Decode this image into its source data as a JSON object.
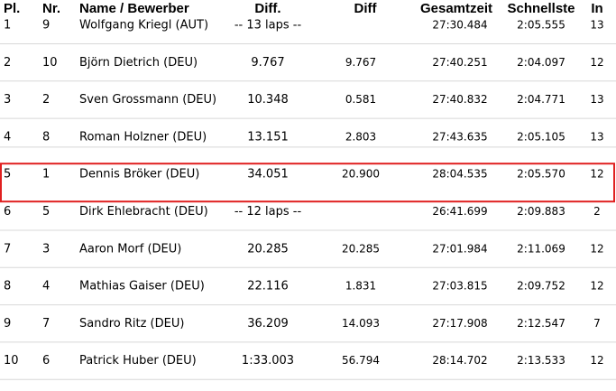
{
  "table": {
    "headers": [
      "Pl.",
      "Nr.",
      "Name / Bewerber",
      "Diff.",
      "Diff",
      "Gesamtzeit",
      "Schnellste",
      "In"
    ],
    "rows": [
      [
        "1",
        "9",
        "Wolfgang Kriegl (AUT)",
        "-- 13 laps --",
        null,
        "27:30.484",
        "2:05.555",
        "13"
      ],
      [
        "2",
        "10",
        "Björn Dietrich (DEU)",
        "9.767",
        "9.767",
        "27:40.251",
        "2:04.097",
        "12"
      ],
      [
        "3",
        "2",
        "Sven Grossmann (DEU)",
        "10.348",
        "0.581",
        "27:40.832",
        "2:04.771",
        "13"
      ],
      [
        "4",
        "8",
        "Roman Holzner (DEU)",
        "13.151",
        "2.803",
        "27:43.635",
        "2:05.105",
        "13"
      ],
      [
        "5",
        "1",
        "Dennis Bröker (DEU)",
        "34.051",
        "20.900",
        "28:04.535",
        "2:05.570",
        "12"
      ],
      [
        "6",
        "5",
        "Dirk Ehlebracht (DEU)",
        "-- 12 laps --",
        null,
        "26:41.699",
        "2:09.883",
        "2"
      ],
      [
        "7",
        "3",
        "Aaron Morf (DEU)",
        "20.285",
        "20.285",
        "27:01.984",
        "2:11.069",
        "12"
      ],
      [
        "8",
        "4",
        "Mathias Gaiser (DEU)",
        "22.116",
        "1.831",
        "27:03.815",
        "2:09.752",
        "12"
      ],
      [
        "9",
        "7",
        "Sandro Ritz (DEU)",
        "36.209",
        "14.093",
        "27:17.908",
        "2:12.547",
        "7"
      ],
      [
        "10",
        "6",
        "Patrick Huber (DEU)",
        "1:33.003",
        "56.794",
        "28:14.702",
        "2:13.533",
        "12"
      ]
    ],
    "highlighted_row": 4
  }
}
